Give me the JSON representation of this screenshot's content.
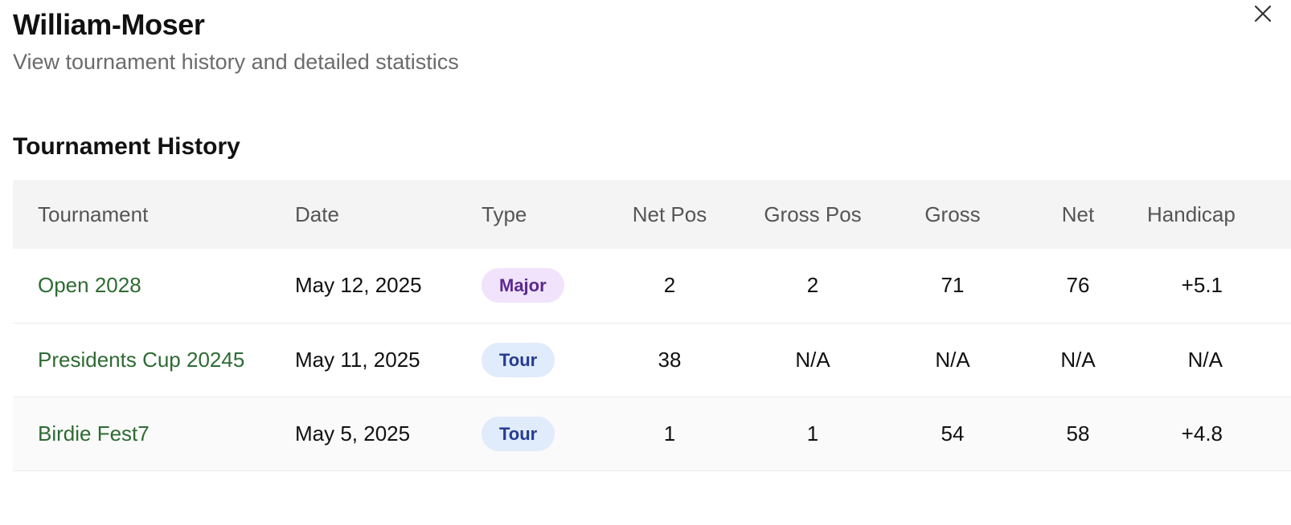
{
  "dialog": {
    "title": "William-Moser",
    "subtitle": "View tournament history and detailed statistics",
    "close_icon": "close-icon"
  },
  "history": {
    "heading": "Tournament History",
    "columns": [
      "Tournament",
      "Date",
      "Type",
      "Net Pos",
      "Gross Pos",
      "Gross",
      "Net",
      "Handicap"
    ],
    "rows": [
      {
        "tournament": "Open 2028",
        "date": "May 12, 2025",
        "type": "Major",
        "net_pos": "2",
        "gross_pos": "2",
        "gross": "71",
        "net": "76",
        "handicap": "+5.1"
      },
      {
        "tournament": "Presidents Cup 20245",
        "date": "May 11, 2025",
        "type": "Tour",
        "net_pos": "38",
        "gross_pos": "N/A",
        "gross": "N/A",
        "net": "N/A",
        "handicap": "N/A"
      },
      {
        "tournament": "Birdie Fest7",
        "date": "May 5, 2025",
        "type": "Tour",
        "net_pos": "1",
        "gross_pos": "1",
        "gross": "54",
        "net": "58",
        "handicap": "+4.8"
      }
    ]
  },
  "colors": {
    "link": "#2e6b33",
    "major_badge_bg": "#f1e3fb",
    "major_badge_text": "#5b2a8f",
    "tour_badge_bg": "#e0ebfb",
    "tour_badge_text": "#253c93",
    "header_bg": "#f4f4f4"
  }
}
